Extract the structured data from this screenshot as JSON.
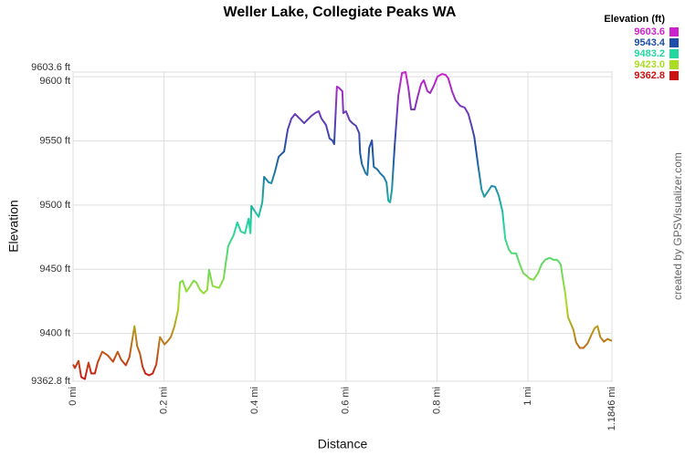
{
  "chart_data": {
    "type": "line",
    "title": "Weller Lake, Collegiate Peaks WA",
    "x_label": "Distance",
    "y_label": "Elevation",
    "credit": "created by GPSVisualizer.com",
    "legend": {
      "title": "Elevation (ft)",
      "items": [
        {
          "value": 9603.6,
          "label": "9603.6",
          "color": "#cc22cc"
        },
        {
          "value": 9543.4,
          "label": "9543.4",
          "color": "#1d4fa8"
        },
        {
          "value": 9483.2,
          "label": "9483.2",
          "color": "#22d6a0"
        },
        {
          "value": 9423.0,
          "label": "9423.0",
          "color": "#aadd22"
        },
        {
          "value": 9362.8,
          "label": "9362.8",
          "color": "#cc1111"
        }
      ]
    },
    "xlim": [
      0,
      1.1846
    ],
    "ylim": [
      9362.8,
      9603.6
    ],
    "xticks": [
      {
        "value": 0,
        "label": "0 mi"
      },
      {
        "value": 0.2,
        "label": "0.2 mi"
      },
      {
        "value": 0.4,
        "label": "0.4 mi"
      },
      {
        "value": 0.6,
        "label": "0.6 mi"
      },
      {
        "value": 0.8,
        "label": "0.8 mi"
      },
      {
        "value": 1,
        "label": "1 mi"
      },
      {
        "value": 1.1846,
        "label": "1.1846 mi"
      }
    ],
    "yticks": [
      {
        "value": 9362.8,
        "label": "9362.8 ft"
      },
      {
        "value": 9400,
        "label": "9400 ft"
      },
      {
        "value": 9450,
        "label": "9450 ft"
      },
      {
        "value": 9500,
        "label": "9500 ft"
      },
      {
        "value": 9550,
        "label": "9550 ft"
      },
      {
        "value": 9600,
        "label": "9600 ft"
      },
      {
        "value": 9603.6,
        "label": "9603.6 ft"
      }
    ],
    "grid": true,
    "x": [
      0.0,
      0.004,
      0.012,
      0.018,
      0.026,
      0.034,
      0.04,
      0.048,
      0.054,
      0.064,
      0.076,
      0.088,
      0.098,
      0.106,
      0.116,
      0.124,
      0.135,
      0.141,
      0.147,
      0.153,
      0.159,
      0.167,
      0.175,
      0.183,
      0.191,
      0.201,
      0.207,
      0.215,
      0.223,
      0.231,
      0.235,
      0.241,
      0.249,
      0.255,
      0.265,
      0.271,
      0.279,
      0.287,
      0.295,
      0.299,
      0.307,
      0.321,
      0.331,
      0.341,
      0.353,
      0.361,
      0.369,
      0.378,
      0.386,
      0.39,
      0.392,
      0.4,
      0.408,
      0.416,
      0.42,
      0.43,
      0.436,
      0.444,
      0.452,
      0.46,
      0.464,
      0.472,
      0.48,
      0.488,
      0.494,
      0.5,
      0.508,
      0.516,
      0.524,
      0.532,
      0.54,
      0.546,
      0.556,
      0.564,
      0.57,
      0.574,
      0.58,
      0.584,
      0.592,
      0.594,
      0.6,
      0.608,
      0.614,
      0.622,
      0.629,
      0.631,
      0.635,
      0.643,
      0.647,
      0.651,
      0.657,
      0.661,
      0.669,
      0.675,
      0.683,
      0.689,
      0.693,
      0.697,
      0.701,
      0.707,
      0.715,
      0.723,
      0.731,
      0.737,
      0.743,
      0.751,
      0.757,
      0.765,
      0.771,
      0.779,
      0.785,
      0.793,
      0.801,
      0.811,
      0.819,
      0.825,
      0.833,
      0.841,
      0.851,
      0.861,
      0.869,
      0.876,
      0.882,
      0.89,
      0.898,
      0.904,
      0.912,
      0.92,
      0.928,
      0.936,
      0.944,
      0.95,
      0.958,
      0.964,
      0.974,
      0.982,
      0.99,
      0.998,
      1.004,
      1.012,
      1.022,
      1.03,
      1.038,
      1.048,
      1.056,
      1.064,
      1.072,
      1.078,
      1.082,
      1.088,
      1.094,
      1.1,
      1.106,
      1.114,
      1.122,
      1.131,
      1.139,
      1.147,
      1.153,
      1.159,
      1.167,
      1.175,
      1.1846
    ],
    "values": [
      9375.9,
      9373.1,
      9378.7,
      9366.0,
      9364.5,
      9377.3,
      9368.8,
      9368.8,
      9377.3,
      9385.8,
      9383.0,
      9378.0,
      9385.8,
      9379.4,
      9375.2,
      9381.6,
      9405.7,
      9390.1,
      9384.4,
      9373.8,
      9368.8,
      9367.4,
      9368.8,
      9375.9,
      9397.2,
      9391.5,
      9393.6,
      9397.2,
      9405.7,
      9418.4,
      9439.7,
      9441.1,
      9432.6,
      9435.5,
      9441.1,
      9439.7,
      9434.0,
      9431.2,
      9434.0,
      9449.6,
      9436.9,
      9435.5,
      9442.6,
      9468.1,
      9476.6,
      9486.5,
      9479.4,
      9478.0,
      9489.4,
      9478.0,
      9499.3,
      9495.0,
      9490.8,
      9502.1,
      9522.0,
      9517.7,
      9517.0,
      9526.2,
      9537.6,
      9540.4,
      9541.8,
      9558.9,
      9567.4,
      9570.9,
      9568.8,
      9566.7,
      9563.8,
      9566.7,
      9569.5,
      9571.6,
      9573.1,
      9567.4,
      9562.4,
      9551.8,
      9550.4,
      9547.5,
      9592.2,
      9591.5,
      9588.7,
      9571.6,
      9573.1,
      9566.0,
      9563.8,
      9561.7,
      9556.0,
      9540.4,
      9531.9,
      9524.8,
      9523.4,
      9544.7,
      9550.4,
      9529.8,
      9527.7,
      9524.8,
      9522.0,
      9517.7,
      9503.5,
      9502.1,
      9512.1,
      9546.1,
      9585.1,
      9602.8,
      9603.6,
      9591.5,
      9574.5,
      9574.5,
      9583.7,
      9594.3,
      9597.2,
      9588.7,
      9587.2,
      9592.9,
      9600.0,
      9602.1,
      9601.4,
      9598.6,
      9588.7,
      9581.6,
      9577.3,
      9575.9,
      9570.9,
      9561.7,
      9553.2,
      9531.9,
      9512.1,
      9506.4,
      9510.6,
      9514.9,
      9514.2,
      9507.1,
      9495.0,
      9473.8,
      9465.3,
      9462.4,
      9462.4,
      9453.9,
      9446.8,
      9444.7,
      9442.6,
      9441.8,
      9446.8,
      9453.9,
      9457.4,
      9458.9,
      9457.4,
      9457.4,
      9453.9,
      9439.7,
      9431.2,
      9412.8,
      9407.8,
      9402.8,
      9392.9,
      9388.7,
      9388.7,
      9392.2,
      9398.6,
      9404.3,
      9405.7,
      9397.2,
      9393.6,
      9395.7,
      9394.3
    ]
  }
}
